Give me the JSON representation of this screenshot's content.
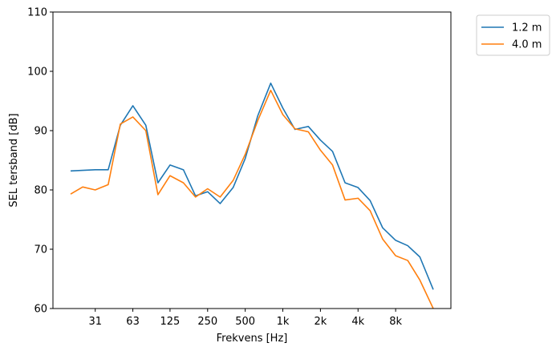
{
  "chart_data": {
    "type": "line",
    "xlabel": "Frekvens [Hz]",
    "ylabel": "SEL tersband [dB]",
    "ylim": [
      60,
      110
    ],
    "yticks": [
      60,
      70,
      80,
      90,
      100,
      110
    ],
    "grid": false,
    "legend_position": "outside-top-right",
    "x_ticks": [
      "31",
      "63",
      "125",
      "250",
      "500",
      "1k",
      "2k",
      "4k",
      "8k"
    ],
    "x_tick_positions": [
      31.5,
      63,
      125,
      250,
      500,
      1000,
      2000,
      4000,
      8000
    ],
    "x": [
      20,
      25,
      31.5,
      40,
      50,
      63,
      80,
      100,
      125,
      160,
      200,
      250,
      315,
      400,
      500,
      630,
      800,
      1000,
      1250,
      1600,
      2000,
      2500,
      3150,
      4000,
      5000,
      6300,
      8000,
      10000,
      12500,
      16000
    ],
    "series": [
      {
        "name": "1.2 m",
        "color": "#1f77b4",
        "values": [
          83.2,
          83.3,
          83.4,
          83.4,
          90.9,
          94.2,
          90.9,
          81.2,
          84.2,
          83.4,
          79.0,
          79.7,
          77.7,
          80.4,
          85.3,
          92.5,
          98.0,
          93.8,
          90.2,
          90.7,
          88.4,
          86.5,
          81.2,
          80.4,
          78.2,
          73.6,
          71.5,
          70.6,
          68.7,
          63.2
        ]
      },
      {
        "name": "4.0 m",
        "color": "#ff7f0e",
        "values": [
          79.3,
          80.5,
          80.0,
          80.9,
          91.1,
          92.3,
          90.0,
          79.2,
          82.4,
          81.2,
          78.8,
          80.2,
          78.8,
          81.6,
          86.0,
          91.7,
          96.8,
          92.7,
          90.3,
          89.8,
          86.7,
          84.2,
          78.3,
          78.6,
          76.5,
          71.7,
          68.9,
          68.1,
          64.8,
          60.0
        ]
      }
    ]
  }
}
